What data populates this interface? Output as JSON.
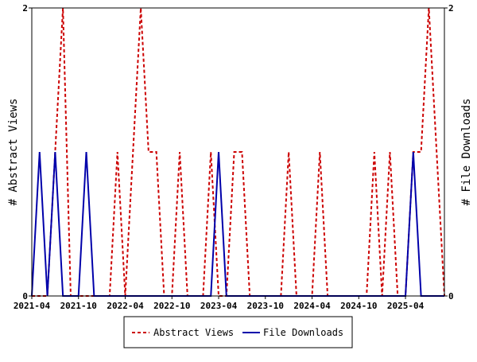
{
  "colors": {
    "abstract_views": "#cc0000",
    "file_downloads": "#0000aa",
    "frame": "#000000",
    "background": "#ffffff"
  },
  "chart_data": {
    "type": "line",
    "x_unit": "month",
    "x": [
      "2021-04",
      "2021-05",
      "2021-06",
      "2021-07",
      "2021-08",
      "2021-09",
      "2021-10",
      "2021-11",
      "2021-12",
      "2022-01",
      "2022-02",
      "2022-03",
      "2022-04",
      "2022-05",
      "2022-06",
      "2022-07",
      "2022-08",
      "2022-09",
      "2022-10",
      "2022-11",
      "2022-12",
      "2023-01",
      "2023-02",
      "2023-03",
      "2023-04",
      "2023-05",
      "2023-06",
      "2023-07",
      "2023-08",
      "2023-09",
      "2023-10",
      "2023-11",
      "2023-12",
      "2024-01",
      "2024-02",
      "2024-03",
      "2024-04",
      "2024-05",
      "2024-06",
      "2024-07",
      "2024-08",
      "2024-09",
      "2024-10",
      "2024-11",
      "2024-12",
      "2025-01",
      "2025-02",
      "2025-03",
      "2025-04",
      "2025-05",
      "2025-06",
      "2025-07",
      "2025-08",
      "2025-09"
    ],
    "x_tick_labels": [
      "2021-04",
      "2021-10",
      "2022-04",
      "2022-10",
      "2023-04",
      "2023-10",
      "2024-04",
      "2024-10",
      "2025-04"
    ],
    "series": [
      {
        "name": "Abstract Views",
        "axis": "left",
        "style": "dashed",
        "values": [
          0,
          0,
          0,
          1,
          2,
          0,
          0,
          0,
          0,
          0,
          0,
          1,
          0,
          1,
          2,
          1,
          1,
          0,
          0,
          1,
          0,
          0,
          0,
          1,
          0,
          0,
          1,
          1,
          0,
          0,
          0,
          0,
          0,
          1,
          0,
          0,
          0,
          1,
          0,
          0,
          0,
          0,
          0,
          0,
          1,
          0,
          1,
          0,
          0,
          1,
          1,
          2,
          1,
          0
        ]
      },
      {
        "name": "File Downloads",
        "axis": "right",
        "style": "solid",
        "values": [
          0,
          1,
          0,
          1,
          0,
          0,
          0,
          1,
          0,
          0,
          0,
          0,
          0,
          0,
          0,
          0,
          0,
          0,
          0,
          0,
          0,
          0,
          0,
          0,
          1,
          0,
          0,
          0,
          0,
          0,
          0,
          0,
          0,
          0,
          0,
          0,
          0,
          0,
          0,
          0,
          0,
          0,
          0,
          0,
          0,
          0,
          0,
          0,
          0,
          1,
          0,
          0,
          0,
          0
        ]
      }
    ],
    "ylabel_left": "# Abstract Views",
    "ylabel_right": "# File Downloads",
    "ylim_left": [
      0,
      2
    ],
    "ylim_right": [
      0,
      2
    ],
    "y_tick_labels_left": [
      "0",
      "2"
    ],
    "y_tick_labels_right": [
      "0",
      "2"
    ],
    "grid": false,
    "legend": {
      "placement": "bottom-center",
      "entries": [
        "Abstract Views",
        "File Downloads"
      ]
    }
  }
}
